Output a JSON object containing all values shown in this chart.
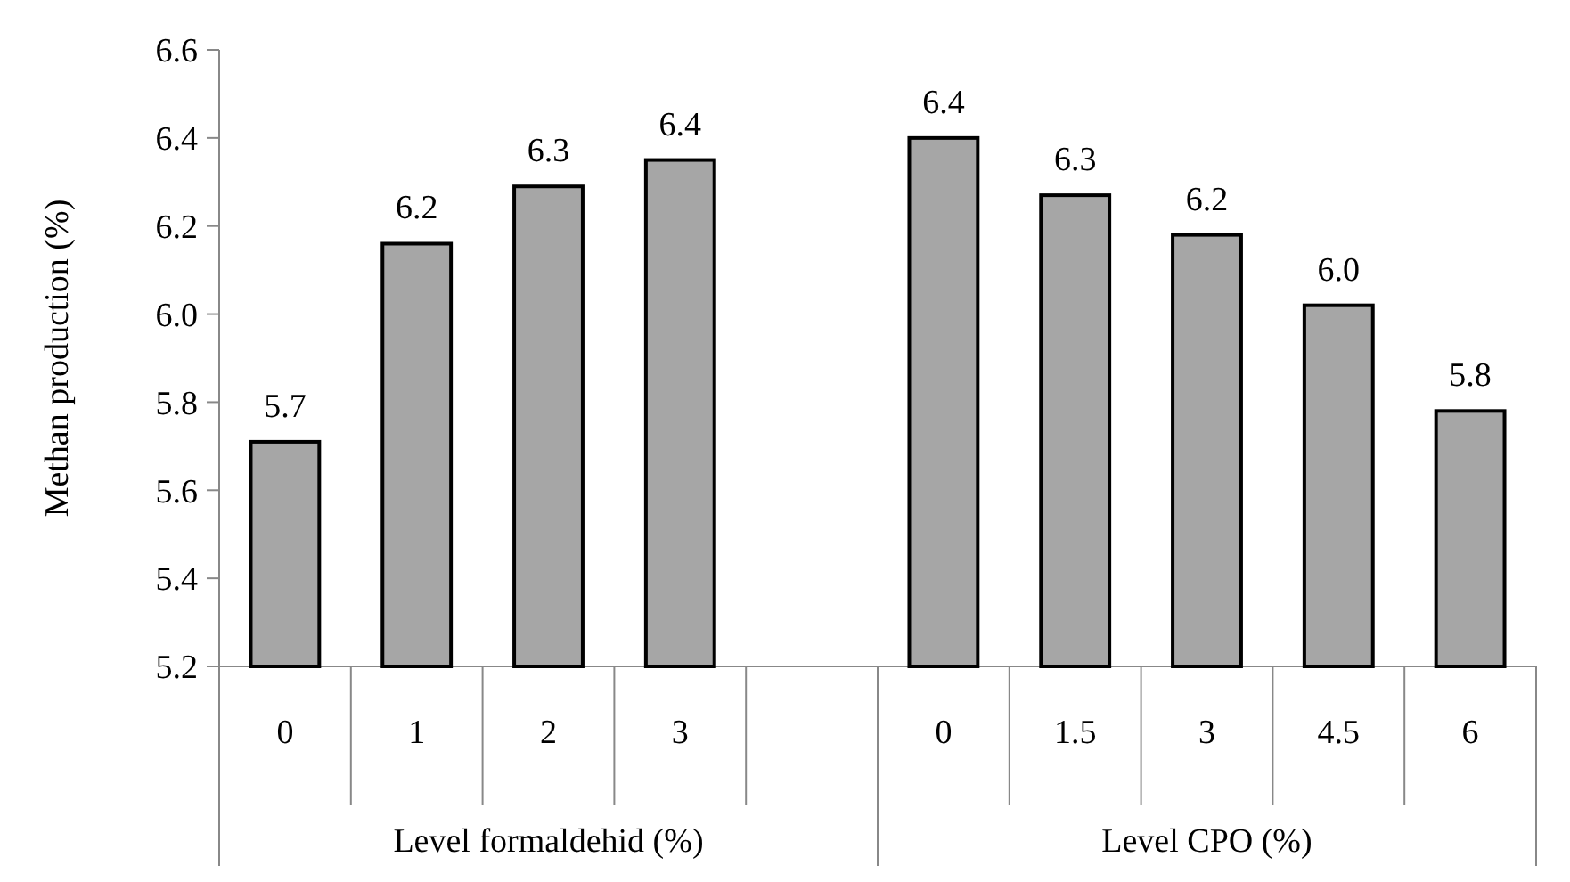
{
  "chart_data": {
    "type": "bar",
    "ylabel": "Methan production (%)",
    "categories": [
      "0",
      "1",
      "2",
      "3",
      null,
      "0",
      "1.5",
      "3",
      "4.5",
      "6"
    ],
    "values": [
      5.71,
      6.16,
      6.29,
      6.35,
      null,
      6.4,
      6.27,
      6.18,
      6.02,
      5.78
    ],
    "value_labels": [
      "5.7",
      "6.2",
      "6.3",
      "6.4",
      null,
      "6.4",
      "6.3",
      "6.2",
      "6.0",
      "5.8"
    ],
    "color": "#a6a6a6",
    "ylim": [
      5.2,
      6.6
    ],
    "yticks": [
      "5.2",
      "5.4",
      "5.6",
      "5.8",
      "6.0",
      "6.2",
      "6.4",
      "6.6"
    ],
    "annotations": [
      "Level formaldehid (%)",
      "Level CPO (%)"
    ],
    "grid": false
  }
}
